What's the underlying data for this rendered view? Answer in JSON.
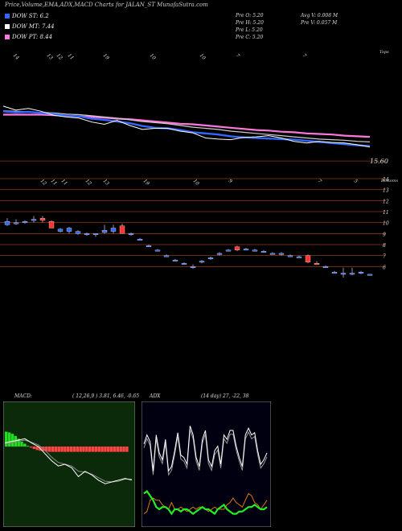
{
  "header": {
    "title": "Price,Volume,EMA,ADX,MACD Charts for JALAN_ST MunafaSutra.com"
  },
  "legend": [
    {
      "label": "DOW ST: 6.2",
      "color": "#3366ff"
    },
    {
      "label": "DOW MT: 7.44",
      "color": "#ffffff"
    },
    {
      "label": "DOW PT: 8.44",
      "color": "#ff77dd"
    }
  ],
  "quote": {
    "o": "Pre  O: 5.20",
    "h": "Pre  H: 5.20",
    "l": "Pre  L: 5.20",
    "c": "Pre  C: 5.20",
    "avgv": "Avg V: 0.008 M",
    "prev": "Pre  V: 0.057 M"
  },
  "colors": {
    "bg": "#000000",
    "grid": "#8b3a1a",
    "up": "#3366ff",
    "down": "#ff3333",
    "ema_short": "#3366ff",
    "ema_mid": "#ffffff",
    "ema_long": "#ff77dd",
    "macd_bg": "#0a2a0a",
    "adx_bg": "#000011",
    "adx_green": "#22ee22",
    "adx_orange": "#dd7711"
  },
  "chart_data": [
    {
      "type": "line",
      "name": "price_ema_top",
      "top_tick_labels": [
        "14",
        "13",
        "12",
        "11",
        "19",
        "10",
        "10",
        "7",
        "7"
      ],
      "top_right_label": "Tops",
      "price_label": "15.60",
      "ema": {
        "short": [
          21.9,
          21.7,
          21.8,
          21.6,
          21.4,
          21.1,
          21.0,
          20.6,
          20.4,
          20.1,
          19.8,
          19.3,
          19.0,
          18.9,
          18.6,
          18.2,
          18.0,
          17.8,
          17.5,
          17.3,
          17.2,
          17.1,
          17.0,
          16.9,
          16.7,
          16.5,
          16.3,
          16.1,
          15.9,
          15.8
        ],
        "mid": [
          22.0,
          21.9,
          21.8,
          21.7,
          21.6,
          21.4,
          21.3,
          21.1,
          20.9,
          20.7,
          20.4,
          20.1,
          19.9,
          19.7,
          19.4,
          19.1,
          18.9,
          18.7,
          18.4,
          18.2,
          18.0,
          17.8,
          17.6,
          17.4,
          17.2,
          17.0,
          16.9,
          16.8,
          16.6,
          16.5
        ],
        "long": [
          21.3,
          21.3,
          21.3,
          21.3,
          21.2,
          21.1,
          21.0,
          20.9,
          20.8,
          20.6,
          20.5,
          20.3,
          20.1,
          19.9,
          19.7,
          19.6,
          19.4,
          19.2,
          19.0,
          18.8,
          18.6,
          18.5,
          18.3,
          18.2,
          18.0,
          17.9,
          17.8,
          17.6,
          17.5,
          17.4
        ]
      },
      "price": [
        22.8,
        22.1,
        22.4,
        21.9,
        21.2,
        20.9,
        20.7,
        20.0,
        19.6,
        20.3,
        19.4,
        18.7,
        18.9,
        18.9,
        18.4,
        18.1,
        17.2,
        17.0,
        16.9,
        17.3,
        17.4,
        17.6,
        17.2,
        16.6,
        16.3,
        16.6,
        16.4,
        16.3,
        16.0,
        15.6
      ]
    },
    {
      "type": "candlestick",
      "name": "price_candles",
      "y_axis_labels": [
        "15.60",
        "14",
        "13",
        "12",
        "11",
        "10",
        "9",
        "8",
        "7",
        "6"
      ],
      "y_ticks": [
        15.6,
        14,
        13,
        12,
        11,
        10,
        9,
        8,
        7,
        6
      ],
      "ylim": [
        5.0,
        15.9
      ],
      "bottom_tick_labels": [
        "12",
        "11",
        "11",
        "12",
        "13",
        "19",
        "10",
        "9",
        "7",
        "5"
      ],
      "bottom_right_label": "Bottoms",
      "candles": [
        {
          "o": 10.1,
          "h": 10.4,
          "l": 9.7,
          "c": 9.8,
          "dir": "up"
        },
        {
          "o": 10.0,
          "h": 10.3,
          "l": 9.8,
          "c": 9.9,
          "dir": "up"
        },
        {
          "o": 10.0,
          "h": 10.2,
          "l": 9.9,
          "c": 10.1,
          "dir": "up"
        },
        {
          "o": 10.3,
          "h": 10.6,
          "l": 10.0,
          "c": 10.3,
          "dir": "up"
        },
        {
          "o": 10.2,
          "h": 10.6,
          "l": 10.0,
          "c": 10.4,
          "dir": "down"
        },
        {
          "o": 10.1,
          "h": 10.2,
          "l": 9.5,
          "c": 9.5,
          "dir": "down"
        },
        {
          "o": 9.4,
          "h": 9.5,
          "l": 9.1,
          "c": 9.2,
          "dir": "up"
        },
        {
          "o": 9.5,
          "h": 9.6,
          "l": 9.0,
          "c": 9.2,
          "dir": "up"
        },
        {
          "o": 9.2,
          "h": 9.3,
          "l": 8.9,
          "c": 9.0,
          "dir": "up"
        },
        {
          "o": 8.9,
          "h": 9.1,
          "l": 8.8,
          "c": 9.0,
          "dir": "up"
        },
        {
          "o": 9.0,
          "h": 9.0,
          "l": 8.7,
          "c": 8.9,
          "dir": "up"
        },
        {
          "o": 9.3,
          "h": 9.8,
          "l": 9.0,
          "c": 9.1,
          "dir": "up"
        },
        {
          "o": 9.2,
          "h": 9.8,
          "l": 9.0,
          "c": 9.5,
          "dir": "up"
        },
        {
          "o": 9.0,
          "h": 9.9,
          "l": 9.0,
          "c": 9.7,
          "dir": "down"
        },
        {
          "o": 9.0,
          "h": 9.1,
          "l": 8.8,
          "c": 8.9,
          "dir": "up"
        },
        {
          "o": 8.5,
          "h": 8.6,
          "l": 8.5,
          "c": 8.5,
          "dir": "up"
        },
        {
          "o": 7.9,
          "h": 8.0,
          "l": 7.8,
          "c": 7.9,
          "dir": "up"
        },
        {
          "o": 7.5,
          "h": 7.6,
          "l": 7.4,
          "c": 7.5,
          "dir": "up"
        },
        {
          "o": 7.0,
          "h": 7.1,
          "l": 7.0,
          "c": 7.0,
          "dir": "up"
        },
        {
          "o": 6.6,
          "h": 6.7,
          "l": 6.6,
          "c": 6.6,
          "dir": "up"
        },
        {
          "o": 6.3,
          "h": 6.4,
          "l": 6.2,
          "c": 6.3,
          "dir": "up"
        },
        {
          "o": 6.0,
          "h": 6.2,
          "l": 5.8,
          "c": 5.9,
          "dir": "up"
        },
        {
          "o": 6.5,
          "h": 6.6,
          "l": 6.3,
          "c": 6.4,
          "dir": "up"
        },
        {
          "o": 6.7,
          "h": 6.9,
          "l": 6.6,
          "c": 6.8,
          "dir": "up"
        },
        {
          "o": 7.2,
          "h": 7.3,
          "l": 7.0,
          "c": 7.2,
          "dir": "up"
        },
        {
          "o": 7.5,
          "h": 7.6,
          "l": 7.4,
          "c": 7.5,
          "dir": "up"
        },
        {
          "o": 7.8,
          "h": 7.9,
          "l": 7.4,
          "c": 7.5,
          "dir": "down"
        },
        {
          "o": 7.6,
          "h": 7.7,
          "l": 7.5,
          "c": 7.6,
          "dir": "up"
        },
        {
          "o": 7.5,
          "h": 7.6,
          "l": 7.4,
          "c": 7.5,
          "dir": "up"
        },
        {
          "o": 7.4,
          "h": 7.5,
          "l": 7.3,
          "c": 7.4,
          "dir": "up"
        },
        {
          "o": 7.2,
          "h": 7.3,
          "l": 7.1,
          "c": 7.2,
          "dir": "up"
        },
        {
          "o": 7.1,
          "h": 7.3,
          "l": 7.0,
          "c": 7.2,
          "dir": "up"
        },
        {
          "o": 7.0,
          "h": 7.1,
          "l": 6.9,
          "c": 7.0,
          "dir": "up"
        },
        {
          "o": 6.9,
          "h": 7.0,
          "l": 6.8,
          "c": 6.9,
          "dir": "up"
        },
        {
          "o": 7.0,
          "h": 7.1,
          "l": 6.3,
          "c": 6.4,
          "dir": "down"
        },
        {
          "o": 6.3,
          "h": 6.5,
          "l": 6.2,
          "c": 6.3,
          "dir": "down"
        },
        {
          "o": 6.0,
          "h": 6.1,
          "l": 5.9,
          "c": 6.0,
          "dir": "up"
        },
        {
          "o": 5.5,
          "h": 5.6,
          "l": 5.5,
          "c": 5.5,
          "dir": "up"
        },
        {
          "o": 5.4,
          "h": 5.9,
          "l": 5.0,
          "c": 5.3,
          "dir": "up"
        },
        {
          "o": 5.3,
          "h": 5.9,
          "l": 5.2,
          "c": 5.4,
          "dir": "up"
        },
        {
          "o": 5.5,
          "h": 5.6,
          "l": 5.3,
          "c": 5.4,
          "dir": "up"
        },
        {
          "o": 5.3,
          "h": 5.3,
          "l": 5.2,
          "c": 5.3,
          "dir": "up"
        }
      ]
    },
    {
      "type": "line",
      "name": "macd",
      "title_left": "MACD:",
      "title_right": "( 12,26,9 ) 3.81, 6.46, -0.65",
      "histogram": [
        0.42,
        0.4,
        0.36,
        0.3,
        0.22,
        0.14,
        0.08,
        0.02,
        -0.03,
        -0.07,
        -0.1,
        -0.12,
        -0.13,
        -0.14,
        -0.15,
        -0.15,
        -0.15,
        -0.15,
        -0.15,
        -0.15,
        -0.15,
        -0.15,
        -0.15,
        -0.15,
        -0.15,
        -0.15,
        -0.15,
        -0.15,
        -0.15,
        -0.15,
        -0.15,
        -0.15,
        -0.15,
        -0.15,
        -0.15,
        -0.15,
        -0.15,
        -0.15,
        -0.15,
        -0.15
      ],
      "macd_line": [
        0.1,
        0.14,
        0.18,
        0.22,
        0.1,
        0.0,
        -0.2,
        -0.4,
        -0.55,
        -0.5,
        -0.6,
        -0.85,
        -0.7,
        -0.8,
        -0.95,
        -1.05,
        -1.0,
        -0.95,
        -0.9,
        -0.95
      ],
      "signal_line": [
        0.05,
        0.1,
        0.15,
        0.18,
        0.12,
        0.05,
        -0.1,
        -0.3,
        -0.45,
        -0.5,
        -0.55,
        -0.7,
        -0.72,
        -0.78,
        -0.88,
        -0.98,
        -1.0,
        -0.98,
        -0.92,
        -0.92
      ],
      "ylim": [
        -2.0,
        1.0
      ]
    },
    {
      "type": "line",
      "name": "adx",
      "title_left": "ADX",
      "title_right": "(14 day) 27, -22, 38",
      "di_plus": [
        34,
        38,
        35,
        22,
        38,
        30,
        27,
        36,
        22,
        24,
        31,
        39,
        29,
        28,
        25,
        42,
        38,
        28,
        24,
        36,
        40,
        27,
        24,
        31,
        33,
        25,
        38,
        36,
        40,
        40,
        33,
        28,
        24,
        38,
        41,
        38,
        39,
        31,
        25,
        27,
        30
      ],
      "di_minus": [
        33,
        37,
        34,
        21,
        37,
        29,
        26,
        35,
        21,
        23,
        30,
        38,
        28,
        27,
        24,
        41,
        37,
        27,
        23,
        35,
        39,
        26,
        23,
        30,
        32,
        24,
        37,
        35,
        39,
        39,
        32,
        27,
        23,
        37,
        40,
        37,
        38,
        30,
        24,
        26,
        29
      ],
      "green": [
        12,
        13,
        11,
        9,
        6,
        5,
        6,
        6,
        5,
        3,
        5,
        5,
        4,
        5,
        5,
        4,
        3,
        4,
        5,
        6,
        5,
        5,
        4,
        3,
        5,
        6,
        7,
        5,
        4,
        3,
        3,
        4,
        4,
        5,
        6,
        6,
        7,
        6,
        5,
        5,
        6
      ],
      "orange": [
        3,
        4,
        9,
        10,
        9,
        9,
        7,
        6,
        5,
        8,
        5,
        5,
        6,
        5,
        4,
        5,
        6,
        5,
        6,
        6,
        5,
        4,
        5,
        6,
        5,
        5,
        5,
        7,
        8,
        10,
        8,
        7,
        6,
        9,
        12,
        11,
        8,
        7,
        5,
        7,
        9
      ],
      "ylim": [
        0,
        50
      ]
    }
  ]
}
